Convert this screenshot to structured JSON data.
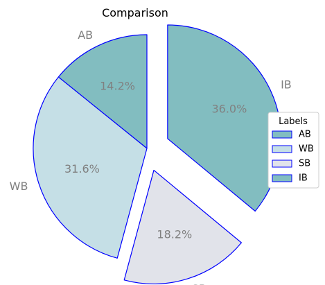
{
  "chart_data": {
    "type": "pie",
    "title": "Comparison",
    "categories": [
      "AB",
      "WB",
      "SB",
      "IB"
    ],
    "values": [
      14.2,
      31.6,
      18.2,
      36.0
    ],
    "value_labels": [
      "14.2%",
      "31.6%",
      "18.2%",
      "36.0%"
    ],
    "colors": [
      "#82bdc0",
      "#c5dfe6",
      "#e1e3ea",
      "#82bdc0"
    ],
    "edge_color": "#0000ff",
    "exploded": [
      false,
      false,
      true,
      true
    ],
    "start_angle_deg": 90,
    "direction": "counterclockwise",
    "legend": {
      "title": "Labels",
      "placement": "center-right",
      "entries": [
        "AB",
        "WB",
        "SB",
        "IB"
      ]
    }
  }
}
